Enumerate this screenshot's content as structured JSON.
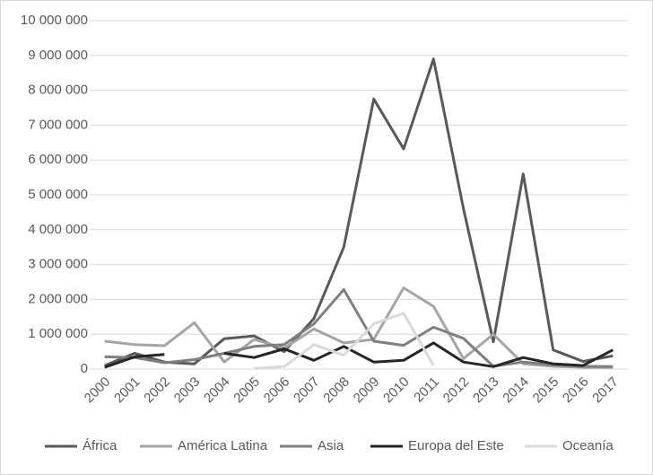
{
  "chart_data": {
    "type": "line",
    "categories": [
      "2000",
      "2001",
      "2002",
      "2003",
      "2004",
      "2005",
      "2006",
      "2007",
      "2008",
      "2009",
      "2010",
      "2011",
      "2012",
      "2013",
      "2014",
      "2015",
      "2016",
      "2017"
    ],
    "series": [
      {
        "name": "África",
        "color": "#595959",
        "values": [
          100000,
          450000,
          200000,
          150000,
          870000,
          950000,
          500000,
          1450000,
          3500000,
          7750000,
          6320000,
          8900000,
          4600000,
          780000,
          5600000,
          550000,
          220000,
          380000
        ]
      },
      {
        "name": "América Latina",
        "color": "#a5a5a5",
        "values": [
          800000,
          700000,
          670000,
          1330000,
          200000,
          850000,
          600000,
          1150000,
          750000,
          850000,
          2330000,
          1800000,
          300000,
          1000000,
          150000,
          80000,
          50000,
          50000
        ]
      },
      {
        "name": "Asia",
        "color": "#7f7f7f",
        "values": [
          350000,
          330000,
          180000,
          270000,
          450000,
          650000,
          700000,
          1300000,
          2280000,
          800000,
          680000,
          1200000,
          880000,
          80000,
          200000,
          120000,
          80000,
          70000
        ]
      },
      {
        "name": "Europa del Este",
        "color": "#262626",
        "values": [
          50000,
          350000,
          420000,
          null,
          450000,
          330000,
          580000,
          250000,
          650000,
          200000,
          250000,
          750000,
          200000,
          70000,
          330000,
          150000,
          100000,
          550000
        ]
      },
      {
        "name": "Oceanía",
        "color": "#d9d9d9",
        "values": [
          null,
          null,
          null,
          null,
          null,
          20000,
          70000,
          700000,
          400000,
          1300000,
          1600000,
          100000,
          null,
          null,
          null,
          null,
          null,
          null
        ]
      }
    ],
    "ylim": [
      0,
      10000000
    ],
    "yticks": [
      0,
      {
        "value": 1000000,
        "label": "1 000 000"
      },
      {
        "value": 2000000,
        "label": "2 000 000"
      },
      {
        "value": 3000000,
        "label": "3 000 000"
      },
      {
        "value": 4000000,
        "label": "4 000 000"
      },
      {
        "value": 5000000,
        "label": "5 000 000"
      },
      {
        "value": 6000000,
        "label": "6 000 000"
      },
      {
        "value": 7000000,
        "label": "7 000 000"
      },
      {
        "value": 8000000,
        "label": "8 000 000"
      },
      {
        "value": 9000000,
        "label": "9 000 000"
      },
      {
        "value": 10000000,
        "label": "10 000 000"
      }
    ],
    "grid": true,
    "legend": "bottom"
  }
}
